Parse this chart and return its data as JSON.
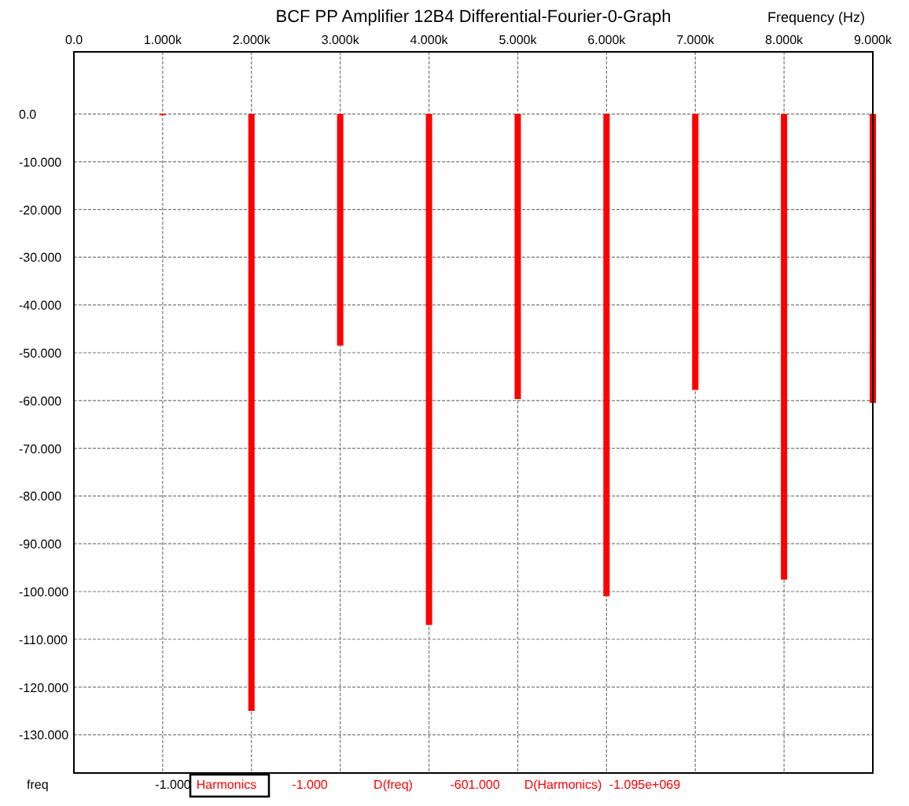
{
  "chart_data": {
    "type": "bar",
    "title": "BCF PP Amplifier 12B4 Differential-Fourier-0-Graph",
    "xlabel": "Frequency  (Hz)",
    "x": [
      1000,
      2000,
      3000,
      4000,
      5000,
      6000,
      7000,
      8000,
      9000
    ],
    "values": [
      0,
      -125,
      -48.5,
      -107,
      -59.7,
      -101,
      -57.8,
      -97.5,
      -60.5
    ],
    "color": "#ff0000",
    "grid": true,
    "xlim": [
      0,
      9000
    ],
    "xticks": [
      {
        "value": 0,
        "label": "0.0"
      },
      {
        "value": 1000,
        "label": "1.000k"
      },
      {
        "value": 2000,
        "label": "2.000k"
      },
      {
        "value": 3000,
        "label": "3.000k"
      },
      {
        "value": 4000,
        "label": "4.000k"
      },
      {
        "value": 5000,
        "label": "5.000k"
      },
      {
        "value": 6000,
        "label": "6.000k"
      },
      {
        "value": 7000,
        "label": "7.000k"
      },
      {
        "value": 8000,
        "label": "8.000k"
      },
      {
        "value": 9000,
        "label": "9.000k"
      }
    ],
    "ylim": [
      -138,
      13
    ],
    "yticks": [
      {
        "value": 0,
        "label": "0.0"
      },
      {
        "value": -10,
        "label": "-10.000"
      },
      {
        "value": -20,
        "label": "-20.000"
      },
      {
        "value": -30,
        "label": "-30.000"
      },
      {
        "value": -40,
        "label": "-40.000"
      },
      {
        "value": -50,
        "label": "-50.000"
      },
      {
        "value": -60,
        "label": "-60.000"
      },
      {
        "value": -70,
        "label": "-70.000"
      },
      {
        "value": -80,
        "label": "-80.000"
      },
      {
        "value": -90,
        "label": "-90.000"
      },
      {
        "value": -100,
        "label": "-100.000"
      },
      {
        "value": -110,
        "label": "-110.000"
      },
      {
        "value": -120,
        "label": "-120.000"
      },
      {
        "value": -130,
        "label": "-130.000"
      }
    ],
    "annotations": [
      "freq",
      "-1.000",
      "Harmonics",
      "-1.000",
      "D(freq)",
      "-601.000",
      "D(Harmonics)",
      "-1.095e+069"
    ]
  }
}
